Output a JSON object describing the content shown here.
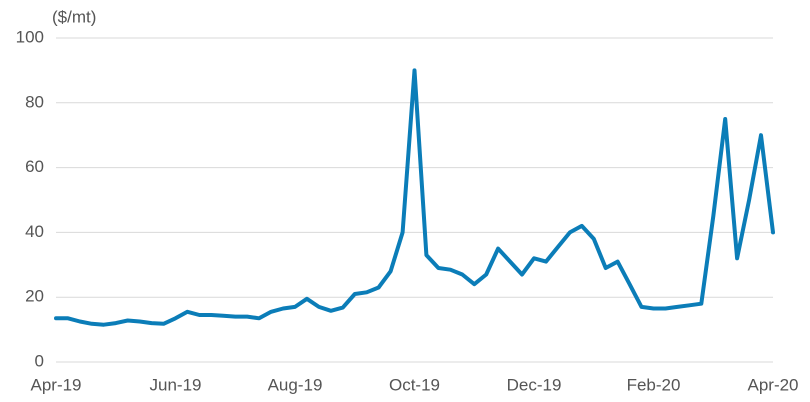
{
  "chart_data": {
    "type": "line",
    "y_label": "($/mt)",
    "categories": [
      "Apr-19",
      null,
      null,
      null,
      null,
      null,
      null,
      null,
      null,
      null,
      "Jun-19",
      null,
      null,
      null,
      null,
      null,
      null,
      null,
      null,
      null,
      "Aug-19",
      null,
      null,
      null,
      null,
      null,
      null,
      null,
      null,
      null,
      "Oct-19",
      null,
      null,
      null,
      null,
      null,
      null,
      null,
      null,
      null,
      "Dec-19",
      null,
      null,
      null,
      null,
      null,
      null,
      null,
      null,
      null,
      "Feb-20",
      null,
      null,
      null,
      null,
      null,
      null,
      null,
      null,
      null,
      "Apr-20"
    ],
    "series": [
      {
        "color": "#0b7db8",
        "values": [
          13.5,
          13.5,
          12.5,
          11.8,
          11.5,
          12,
          12.8,
          12.5,
          12,
          11.8,
          13.5,
          15.5,
          14.5,
          14.5,
          14.3,
          14,
          14,
          13.5,
          15.5,
          16.5,
          17,
          19.5,
          17,
          15.8,
          16.8,
          21,
          21.5,
          23,
          28,
          40,
          90,
          33,
          29,
          28.5,
          27,
          24,
          27,
          35,
          31,
          27,
          32,
          31,
          35.5,
          40,
          42,
          38,
          29,
          31,
          24,
          17,
          16.5,
          16.5,
          17,
          17.5,
          18,
          45,
          75,
          32,
          50,
          70,
          40
        ]
      }
    ],
    "ylim": [
      0,
      100
    ],
    "yticks": [
      0,
      20,
      40,
      60,
      80,
      100
    ],
    "grid": true
  }
}
